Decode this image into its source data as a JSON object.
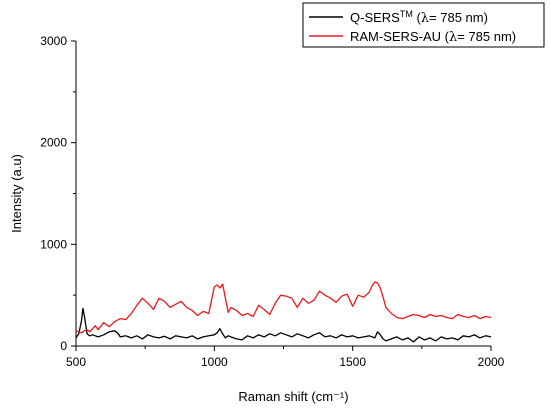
{
  "chart_data": {
    "type": "line",
    "xlabel": "Raman shift (cm⁻¹)",
    "ylabel": "Intensity (a.u)",
    "xlim": [
      500,
      2000
    ],
    "ylim": [
      0,
      3000
    ],
    "x_ticks": [
      "500",
      "1000",
      "1500",
      "2000"
    ],
    "y_ticks": [
      "0",
      "1000",
      "2000",
      "3000"
    ],
    "grid": false,
    "legend_position": "top-right",
    "legend": [
      {
        "base": "Q-SERS",
        "sup": "TM",
        "suffix_pre": " (",
        "lambda": "λ",
        "suffix_post": "= 785 nm)",
        "color": "#000000"
      },
      {
        "base": "RAM-SERS-AU",
        "sup": "",
        "suffix_pre": " (",
        "lambda": "λ",
        "suffix_post": "= 785 nm)",
        "color": "#e8191d"
      }
    ],
    "series": [
      {
        "name": "Q-SERS™ (λ= 785 nm)",
        "color": "#000000",
        "x": [
          500,
          510,
          520,
          525,
          530,
          540,
          550,
          560,
          580,
          600,
          620,
          640,
          650,
          660,
          680,
          700,
          720,
          740,
          760,
          780,
          800,
          820,
          840,
          860,
          880,
          900,
          920,
          940,
          960,
          980,
          1000,
          1010,
          1020,
          1030,
          1040,
          1050,
          1060,
          1080,
          1100,
          1120,
          1140,
          1160,
          1180,
          1200,
          1220,
          1240,
          1260,
          1280,
          1300,
          1320,
          1340,
          1360,
          1380,
          1400,
          1420,
          1440,
          1460,
          1480,
          1500,
          1520,
          1540,
          1560,
          1580,
          1590,
          1600,
          1610,
          1620,
          1640,
          1660,
          1680,
          1700,
          1720,
          1740,
          1760,
          1780,
          1800,
          1820,
          1840,
          1860,
          1880,
          1900,
          1920,
          1940,
          1960,
          1980,
          2000
        ],
        "y": [
          80,
          120,
          250,
          370,
          300,
          120,
          100,
          110,
          90,
          110,
          140,
          150,
          130,
          90,
          100,
          80,
          100,
          70,
          110,
          90,
          80,
          95,
          70,
          100,
          90,
          80,
          100,
          70,
          90,
          100,
          110,
          130,
          170,
          120,
          80,
          100,
          90,
          70,
          60,
          100,
          80,
          110,
          90,
          120,
          100,
          130,
          110,
          90,
          120,
          100,
          80,
          110,
          130,
          90,
          100,
          80,
          110,
          90,
          100,
          80,
          90,
          100,
          80,
          140,
          110,
          70,
          50,
          70,
          90,
          60,
          80,
          40,
          90,
          60,
          80,
          50,
          90,
          70,
          80,
          60,
          100,
          90,
          110,
          80,
          100,
          90
        ]
      },
      {
        "name": "RAM-SERS-AU (λ= 785 nm)",
        "color": "#e8191d",
        "x": [
          500,
          510,
          520,
          530,
          540,
          550,
          560,
          570,
          580,
          600,
          620,
          640,
          660,
          680,
          700,
          720,
          740,
          760,
          780,
          800,
          820,
          840,
          860,
          880,
          900,
          920,
          940,
          960,
          980,
          1000,
          1010,
          1020,
          1030,
          1040,
          1050,
          1060,
          1080,
          1100,
          1120,
          1140,
          1160,
          1180,
          1200,
          1220,
          1240,
          1260,
          1280,
          1300,
          1320,
          1340,
          1360,
          1380,
          1400,
          1420,
          1440,
          1460,
          1480,
          1500,
          1520,
          1540,
          1560,
          1570,
          1580,
          1590,
          1600,
          1610,
          1620,
          1640,
          1660,
          1680,
          1700,
          1720,
          1740,
          1760,
          1780,
          1800,
          1820,
          1840,
          1860,
          1880,
          1900,
          1920,
          1940,
          1960,
          1980,
          2000
        ],
        "y": [
          150,
          140,
          130,
          150,
          160,
          140,
          170,
          200,
          160,
          230,
          190,
          240,
          270,
          260,
          320,
          400,
          470,
          420,
          360,
          470,
          440,
          380,
          410,
          440,
          380,
          350,
          300,
          340,
          320,
          580,
          600,
          570,
          610,
          470,
          330,
          380,
          350,
          300,
          320,
          290,
          400,
          360,
          310,
          420,
          500,
          490,
          470,
          380,
          470,
          420,
          450,
          540,
          500,
          470,
          430,
          490,
          510,
          390,
          500,
          480,
          530,
          590,
          630,
          620,
          570,
          480,
          380,
          320,
          280,
          270,
          290,
          310,
          300,
          280,
          310,
          290,
          300,
          280,
          270,
          310,
          290,
          280,
          300,
          270,
          290,
          280
        ]
      }
    ]
  }
}
